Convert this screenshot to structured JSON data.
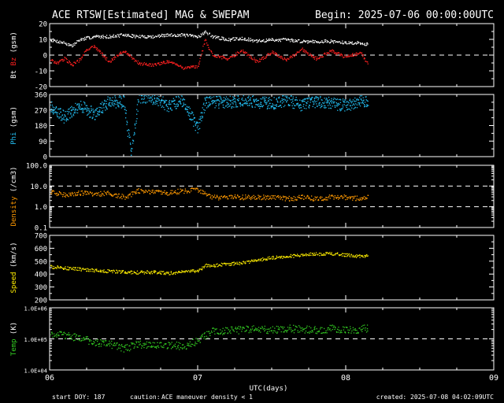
{
  "header": {
    "title": "ACE RTSW[Estimated] MAG & SWEPAM",
    "begin": "Begin: 2025-07-06 00:00:00UTC"
  },
  "footer": {
    "start_doy": "start DOY: 187",
    "caution_label": "caution:",
    "caution_maneuver": "ACE maneuver",
    "caution_density": "density < 1",
    "created": "created: 2025-07-08 04:02:09UTC"
  },
  "colors": {
    "background": "#000000",
    "frame": "#ffffff",
    "bt": "#ffffff",
    "bz": "#ff2020",
    "phi": "#22bbee",
    "density": "#ff9900",
    "speed": "#ffee00",
    "temp": "#33cc22",
    "caution_maneuver": "#ff9900",
    "caution_density": "#ff9900"
  },
  "chart_data": [
    {
      "type": "scatter",
      "ylabel_parts": [
        "Bt",
        "Bz",
        "(gsm)"
      ],
      "ylim": [
        -20,
        20
      ],
      "ticks": [
        -20,
        -10,
        0,
        10,
        20
      ],
      "tick_labels": [
        "-20",
        "-10",
        "0",
        "10",
        "20"
      ],
      "dashed_lines": [
        0
      ],
      "series": [
        {
          "name": "Bt",
          "x": [
            0,
            0.05,
            0.1,
            0.15,
            0.2,
            0.25,
            0.3,
            0.4,
            0.5,
            0.6,
            0.7,
            0.8,
            0.9,
            1.0,
            1.05,
            1.1,
            1.2,
            1.3,
            1.4,
            1.5,
            1.6,
            1.7,
            1.8,
            1.9,
            2.0,
            2.1,
            2.15
          ],
          "y": [
            10,
            9,
            8,
            6,
            10,
            11,
            12,
            12,
            13,
            12,
            12,
            13,
            13,
            12,
            15,
            12,
            10,
            11,
            9,
            10,
            10,
            9,
            9,
            9,
            8,
            8,
            7
          ]
        },
        {
          "name": "Bz",
          "x": [
            0,
            0.05,
            0.1,
            0.15,
            0.2,
            0.25,
            0.3,
            0.4,
            0.5,
            0.6,
            0.7,
            0.8,
            0.9,
            1.0,
            1.05,
            1.1,
            1.2,
            1.3,
            1.4,
            1.5,
            1.6,
            1.7,
            1.8,
            1.9,
            2.0,
            2.1,
            2.15
          ],
          "y": [
            -3,
            -5,
            -2,
            -6,
            -3,
            4,
            6,
            -4,
            3,
            -5,
            -6,
            -4,
            -8,
            -7,
            10,
            0,
            -2,
            3,
            -4,
            2,
            -3,
            4,
            -2,
            3,
            -1,
            2,
            -6
          ]
        }
      ]
    },
    {
      "type": "scatter",
      "ylabel_parts": [
        "Phi",
        "(gsm)"
      ],
      "ylim": [
        0,
        360
      ],
      "ticks": [
        0,
        90,
        180,
        270,
        360
      ],
      "tick_labels": [
        "0",
        "90",
        "180",
        "270",
        "360"
      ],
      "series": [
        {
          "name": "Phi",
          "x": [
            0,
            0.1,
            0.2,
            0.3,
            0.4,
            0.5,
            0.55,
            0.6,
            0.7,
            0.8,
            0.9,
            1.0,
            1.05,
            1.1,
            1.2,
            1.3,
            1.4,
            1.5,
            1.6,
            1.7,
            1.8,
            1.9,
            2.0,
            2.1,
            2.15
          ],
          "y": [
            290,
            230,
            300,
            250,
            320,
            320,
            20,
            350,
            340,
            300,
            330,
            160,
            320,
            320,
            315,
            330,
            320,
            310,
            330,
            300,
            320,
            310,
            300,
            320,
            330
          ]
        }
      ]
    },
    {
      "type": "scatter",
      "ylabel_parts": [
        "Density",
        "(/cm3)"
      ],
      "yscale": "log",
      "ylim": [
        0.1,
        100
      ],
      "ticks": [
        0.1,
        1,
        10,
        100
      ],
      "tick_labels": [
        "0.1",
        "1.0",
        "10.0",
        "100.0"
      ],
      "dashed_lines": [
        1,
        10
      ],
      "series": [
        {
          "name": "Density",
          "x": [
            0,
            0.1,
            0.2,
            0.3,
            0.4,
            0.5,
            0.6,
            0.7,
            0.8,
            0.9,
            1.0,
            1.1,
            1.2,
            1.3,
            1.4,
            1.5,
            1.6,
            1.7,
            1.8,
            1.9,
            2.0,
            2.1,
            2.15
          ],
          "y": [
            5,
            4,
            5,
            4,
            5,
            3,
            6,
            5,
            5,
            6,
            7,
            3,
            3,
            3,
            3,
            3,
            2.5,
            3,
            2.5,
            3,
            3,
            2.5,
            3
          ]
        }
      ]
    },
    {
      "type": "scatter",
      "ylabel_parts": [
        "Speed",
        "(km/s)"
      ],
      "ylim": [
        200,
        700
      ],
      "ticks": [
        200,
        300,
        400,
        500,
        600,
        700
      ],
      "tick_labels": [
        "200",
        "300",
        "400",
        "500",
        "600",
        "700"
      ],
      "series": [
        {
          "name": "Speed",
          "x": [
            0,
            0.1,
            0.2,
            0.3,
            0.4,
            0.5,
            0.6,
            0.7,
            0.8,
            0.9,
            1.0,
            1.05,
            1.1,
            1.2,
            1.3,
            1.4,
            1.5,
            1.6,
            1.7,
            1.8,
            1.9,
            2.0,
            2.1,
            2.15
          ],
          "y": [
            460,
            450,
            440,
            430,
            425,
            420,
            415,
            420,
            410,
            420,
            430,
            470,
            470,
            480,
            490,
            510,
            530,
            540,
            550,
            560,
            560,
            550,
            540,
            545
          ]
        }
      ]
    },
    {
      "type": "scatter",
      "ylabel_parts": [
        "Temp",
        "(K)"
      ],
      "yscale": "log",
      "ylim": [
        10000,
        1000000
      ],
      "ticks": [
        10000,
        100000,
        1000000
      ],
      "tick_labels": [
        "1.0E+04",
        "1.0E+05",
        "1.0E+06"
      ],
      "dashed_lines": [
        100000
      ],
      "series": [
        {
          "name": "Temp",
          "x": [
            0,
            0.1,
            0.2,
            0.3,
            0.4,
            0.5,
            0.6,
            0.7,
            0.8,
            0.9,
            1.0,
            1.1,
            1.2,
            1.3,
            1.4,
            1.5,
            1.6,
            1.7,
            1.8,
            1.9,
            2.0,
            2.1,
            2.15
          ],
          "y": [
            160000,
            130000,
            110000,
            80000,
            70000,
            50000,
            70000,
            60000,
            65000,
            60000,
            90000,
            180000,
            190000,
            200000,
            210000,
            200000,
            220000,
            210000,
            200000,
            220000,
            200000,
            210000,
            230000
          ]
        }
      ]
    }
  ],
  "x_axis": {
    "label": "UTC(days)",
    "xlim": [
      0,
      3
    ],
    "ticks": [
      0,
      1,
      2,
      3
    ],
    "tick_labels": [
      "06",
      "07",
      "08",
      "09"
    ]
  }
}
